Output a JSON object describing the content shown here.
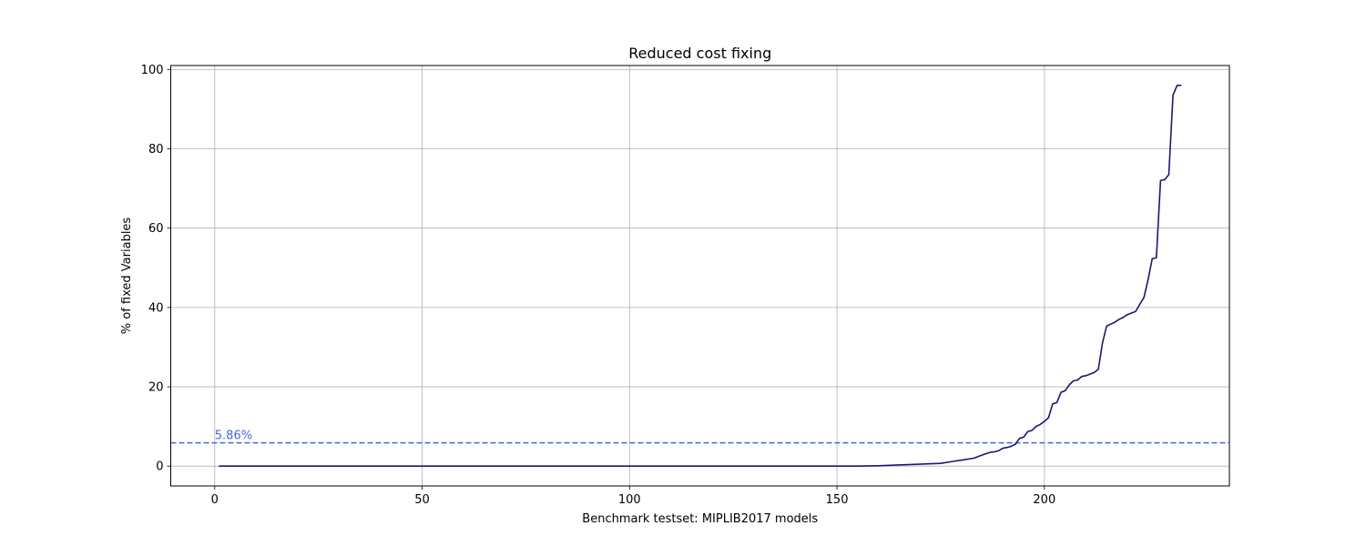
{
  "chart_data": {
    "type": "line",
    "title": "Reduced cost fixing",
    "xlabel": "Benchmark testset: MIPLIB2017 models",
    "ylabel": "% of fixed Variables",
    "xlim": [
      -10.6,
      244.6
    ],
    "ylim": [
      -5.0,
      101.0
    ],
    "xticks": [
      0,
      50,
      100,
      150,
      200
    ],
    "yticks": [
      0,
      20,
      40,
      60,
      80,
      100
    ],
    "grid": true,
    "colors": {
      "line": "#191970",
      "reference": "#4169e1",
      "grid": "#b0b0b0"
    },
    "reference_line": {
      "y": 5.86,
      "label": "5.86%",
      "style": "dashed"
    },
    "series": [
      {
        "x": [
          1,
          155,
          160,
          165,
          170,
          175,
          178,
          180,
          183,
          185,
          187,
          188,
          189,
          190,
          191,
          192,
          193,
          194,
          195,
          196,
          197,
          198,
          199,
          200,
          201,
          202,
          203,
          204,
          205,
          206,
          207,
          208,
          209,
          210,
          211,
          212,
          213,
          214,
          215,
          216,
          217,
          218,
          219,
          220,
          221,
          222,
          223,
          224,
          225,
          226,
          227,
          228,
          229,
          230,
          231,
          232,
          233
        ],
        "y": [
          0,
          0,
          0.1,
          0.3,
          0.5,
          0.7,
          1.2,
          1.5,
          2.0,
          2.8,
          3.5,
          3.6,
          3.9,
          4.5,
          4.7,
          5.0,
          5.5,
          7.0,
          7.3,
          8.7,
          9.0,
          10.0,
          10.5,
          11.3,
          12.2,
          15.7,
          16.0,
          18.6,
          19.0,
          20.5,
          21.5,
          21.7,
          22.6,
          22.8,
          23.2,
          23.6,
          24.4,
          31.0,
          35.3,
          35.8,
          36.3,
          37.0,
          37.5,
          38.2,
          38.6,
          39.0,
          40.8,
          42.5,
          47.0,
          52.3,
          52.5,
          72.0,
          72.2,
          73.5,
          93.5,
          96.0,
          96.0
        ]
      }
    ]
  }
}
